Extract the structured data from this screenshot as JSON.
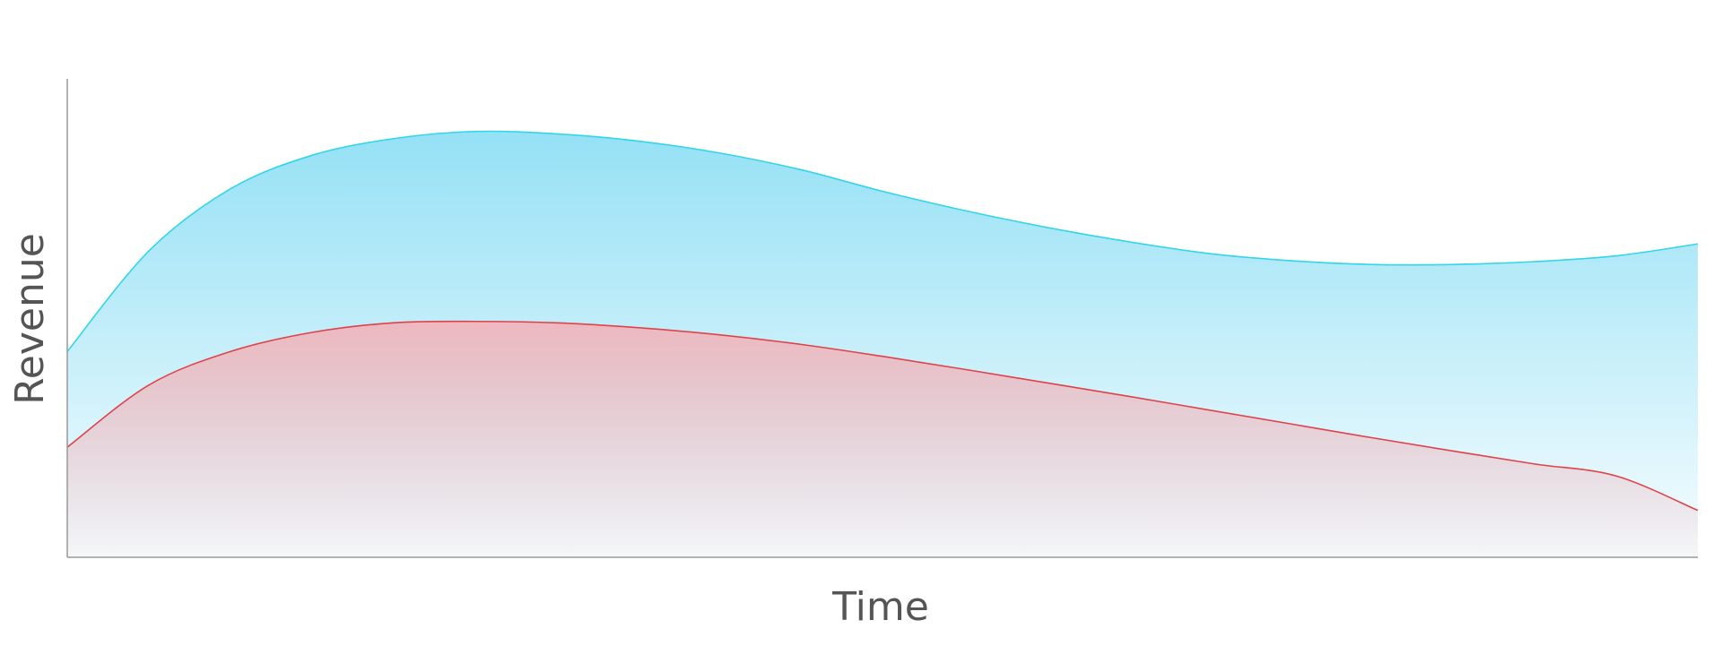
{
  "chart_data": {
    "type": "area",
    "title": "",
    "xlabel": "Time",
    "ylabel": "Revenue",
    "x": [
      0,
      0.05,
      0.1,
      0.15,
      0.2,
      0.25,
      0.3,
      0.35,
      0.4,
      0.45,
      0.5,
      0.55,
      0.6,
      0.65,
      0.7,
      0.75,
      0.8,
      0.85,
      0.9,
      0.95,
      1.0
    ],
    "xlim": [
      0,
      1
    ],
    "ylim": [
      0,
      1
    ],
    "stacked": false,
    "grid": false,
    "legend": "none",
    "series": [
      {
        "color": "#33d6e8",
        "fill": "#8fdff5",
        "values": [
          0.43,
          0.64,
          0.77,
          0.84,
          0.875,
          0.89,
          0.885,
          0.87,
          0.845,
          0.81,
          0.765,
          0.725,
          0.69,
          0.66,
          0.635,
          0.62,
          0.612,
          0.612,
          0.618,
          0.63,
          0.655
        ]
      },
      {
        "color": "#e0424a",
        "fill": "#f0b5bb",
        "values": [
          0.23,
          0.36,
          0.43,
          0.47,
          0.49,
          0.493,
          0.49,
          0.48,
          0.465,
          0.445,
          0.42,
          0.393,
          0.365,
          0.337,
          0.308,
          0.279,
          0.25,
          0.222,
          0.195,
          0.17,
          0.098
        ]
      }
    ]
  }
}
